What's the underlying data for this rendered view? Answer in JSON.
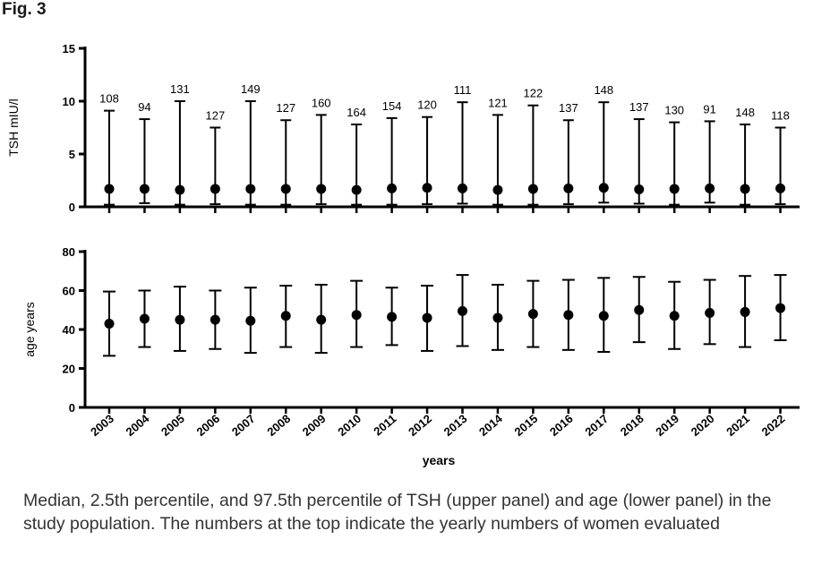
{
  "figure_label": "Fig. 3",
  "caption": "Median, 2.5th percentile, and 97.5th percentile of TSH (upper panel) and age (lower panel) in the study population. The numbers at the top indicate the yearly numbers of women evaluated",
  "chart_data": [
    {
      "type": "scatter",
      "panel": "upper",
      "title": "",
      "ylabel": "TSH mIU/l",
      "xlabel": "",
      "ylim": [
        0,
        15
      ],
      "yticks": [
        0,
        5,
        10,
        15
      ],
      "categories": [
        "2003",
        "2004",
        "2005",
        "2006",
        "2007",
        "2008",
        "2009",
        "2010",
        "2011",
        "2012",
        "2013",
        "2014",
        "2015",
        "2016",
        "2017",
        "2018",
        "2019",
        "2020",
        "2021",
        "2022"
      ],
      "median": [
        1.7,
        1.7,
        1.6,
        1.7,
        1.7,
        1.7,
        1.7,
        1.6,
        1.75,
        1.8,
        1.75,
        1.6,
        1.7,
        1.75,
        1.8,
        1.65,
        1.7,
        1.75,
        1.7,
        1.75
      ],
      "p2_5": [
        0.2,
        0.35,
        0.2,
        0.25,
        0.2,
        0.2,
        0.25,
        0.2,
        0.2,
        0.25,
        0.3,
        0.2,
        0.2,
        0.25,
        0.4,
        0.3,
        0.2,
        0.4,
        0.2,
        0.25
      ],
      "p97_5": [
        9.1,
        8.3,
        10.0,
        7.5,
        10.0,
        8.2,
        8.7,
        7.8,
        8.4,
        8.5,
        9.9,
        8.7,
        9.6,
        8.2,
        9.9,
        8.3,
        8.0,
        8.1,
        7.8,
        7.5
      ],
      "counts": [
        "108",
        "94",
        "131",
        "127",
        "149",
        "127",
        "160",
        "164",
        "154",
        "120",
        "111",
        "121",
        "122",
        "137",
        "148",
        "137",
        "130",
        "91",
        "148",
        "118"
      ]
    },
    {
      "type": "scatter",
      "panel": "lower",
      "title": "",
      "ylabel": "age years",
      "xlabel": "years",
      "ylim": [
        0,
        80
      ],
      "yticks": [
        0,
        20,
        40,
        60,
        80
      ],
      "categories": [
        "2003",
        "2004",
        "2005",
        "2006",
        "2007",
        "2008",
        "2009",
        "2010",
        "2011",
        "2012",
        "2013",
        "2014",
        "2015",
        "2016",
        "2017",
        "2018",
        "2019",
        "2020",
        "2021",
        "2022"
      ],
      "median": [
        43,
        45.5,
        45,
        45,
        44.5,
        47,
        45,
        47.5,
        46.5,
        46,
        49.5,
        46,
        48,
        47.5,
        47,
        50,
        47,
        48.5,
        49,
        51
      ],
      "p2_5": [
        26.5,
        31,
        29,
        30,
        28,
        31,
        28,
        31,
        32,
        29,
        31.5,
        29.5,
        31,
        29.5,
        28.5,
        33.5,
        30,
        32.5,
        31,
        34.5
      ],
      "p97_5": [
        59.5,
        60,
        62,
        60,
        61.5,
        62.5,
        63,
        65,
        61.5,
        62.5,
        68,
        63,
        65,
        65.5,
        66.5,
        67,
        64.5,
        65.5,
        67.5,
        68
      ]
    }
  ]
}
